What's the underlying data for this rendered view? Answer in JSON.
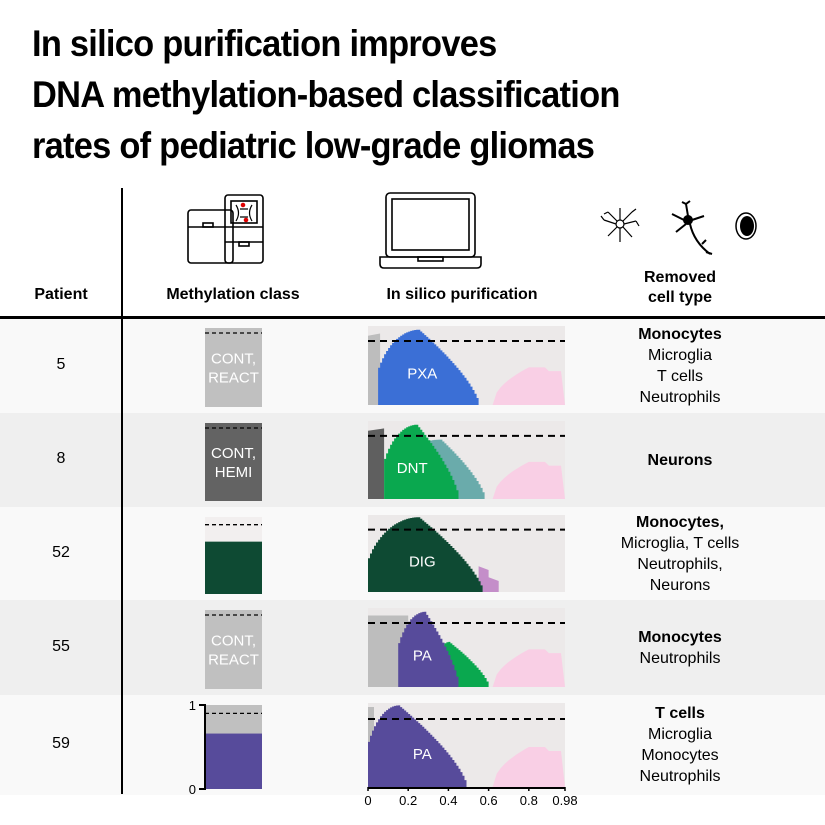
{
  "title": [
    "In silico purification improves",
    "DNA methylation-based classification",
    "rates of pediatric low-grade gliomas"
  ],
  "headers": {
    "patient": "Patient",
    "methylation_class": "Methylation class",
    "purification": "In silico purification",
    "removed_line1": "Removed",
    "removed_line2": "cell type"
  },
  "icons": [
    "sequencer-icon",
    "laptop-icon",
    "microglia-icon",
    "neuron-icon",
    "cell-icon"
  ],
  "rows": [
    {
      "patient": "5",
      "class_label": [
        "CONT,",
        "REACT"
      ],
      "class_color": "#c0c0c0",
      "tumor_label": "PXA",
      "tumor_color": "#3b6fd6",
      "removed": [
        "Monocytes",
        "Microglia",
        "T cells",
        "Neutrophils"
      ]
    },
    {
      "patient": "8",
      "class_label": [
        "CONT,",
        "HEMI"
      ],
      "class_color": "#636363",
      "tumor_label": "DNT",
      "tumor_color": "#0aa84f",
      "removed": [
        "Neurons"
      ]
    },
    {
      "patient": "52",
      "class_label": [
        "",
        ""
      ],
      "class_color": "#0e4a33",
      "tumor_label": "DIG",
      "tumor_color": "#0e4a33",
      "removed": [
        "Monocytes,",
        "Microglia, T cells",
        "Neutrophils,",
        "Neurons"
      ]
    },
    {
      "patient": "55",
      "class_label": [
        "CONT,",
        "REACT"
      ],
      "class_color": "#c0c0c0",
      "tumor_label": "PA",
      "tumor_color": "#574b9b",
      "removed": [
        "Monocytes",
        "Neutrophils"
      ]
    },
    {
      "patient": "59",
      "class_label": [
        "",
        ""
      ],
      "class_color": "#574b9b",
      "tumor_label": "PA",
      "tumor_color": "#574b9b",
      "removed": [
        "T cells",
        "Microglia",
        "Monocytes",
        "Neutrophils"
      ]
    }
  ],
  "class_axis_ticks": [
    "0",
    "1"
  ],
  "x_axis_ticks": [
    "0",
    "0.2",
    "0.4",
    "0.6",
    "0.8",
    "0.98"
  ],
  "colors": {
    "plot_bg": "#ece9e9",
    "normal_pink": "#f9cfe5",
    "other_gray": "#bdbdbd",
    "teal": "#6aabab",
    "lilac": "#c48ec9",
    "row_alt": "#efefef"
  }
}
